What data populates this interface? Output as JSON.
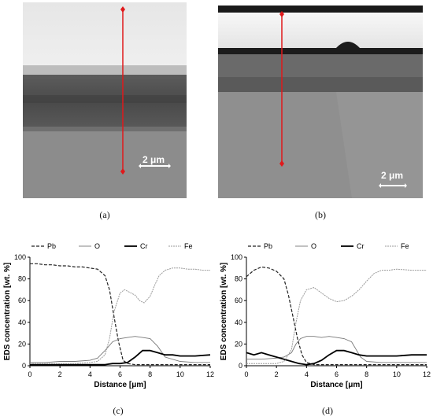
{
  "panels": {
    "a": {
      "caption": "(a)",
      "scale_bar": "2 μm"
    },
    "b": {
      "caption": "(b)",
      "scale_bar": "2 μm"
    },
    "c": {
      "caption": "(c)"
    },
    "d": {
      "caption": "(d)"
    }
  },
  "colors": {
    "line_scan": "#e0191b",
    "pb": "#222222",
    "o": "#777777",
    "cr": "#000000",
    "fe": "#9a9a9a"
  },
  "chart_data": [
    {
      "type": "line",
      "panel": "c",
      "xlabel": "Distance [μm]",
      "ylabel": "EDS concentration [wt. %]",
      "xlim": [
        0,
        12
      ],
      "ylim": [
        0,
        100
      ],
      "xticks": [
        0,
        2,
        4,
        6,
        8,
        10,
        12
      ],
      "yticks": [
        0,
        20,
        40,
        60,
        80,
        100
      ],
      "legend_position": "top",
      "series": [
        {
          "name": "Pb",
          "style": "dashed",
          "x": [
            0,
            0.5,
            1,
            1.5,
            2,
            2.5,
            3,
            3.5,
            4,
            4.5,
            5,
            5.3,
            5.6,
            5.9,
            6.2,
            6.5,
            7,
            8,
            9,
            10,
            11,
            12
          ],
          "y": [
            94,
            94,
            93,
            93,
            92,
            92,
            91,
            91,
            90,
            89,
            83,
            70,
            45,
            22,
            5,
            2,
            1,
            1,
            1,
            1,
            1,
            1
          ]
        },
        {
          "name": "O",
          "style": "solid",
          "x": [
            0,
            1,
            2,
            3,
            4,
            4.5,
            5,
            5.5,
            6,
            6.5,
            7,
            7.5,
            8,
            8.5,
            9,
            10,
            11,
            12
          ],
          "y": [
            3,
            3,
            4,
            4,
            5,
            7,
            14,
            22,
            25,
            26,
            27,
            26,
            25,
            18,
            8,
            4,
            3,
            3
          ]
        },
        {
          "name": "Cr",
          "style": "solid-bold",
          "x": [
            0,
            1,
            2,
            3,
            4,
            5,
            5.5,
            6,
            6.5,
            7,
            7.5,
            8,
            8.5,
            9,
            9.5,
            10,
            11,
            12
          ],
          "y": [
            1,
            1,
            1,
            1,
            1,
            1,
            2,
            2,
            3,
            8,
            14,
            14,
            12,
            10,
            10,
            9,
            9,
            10
          ]
        },
        {
          "name": "Fe",
          "style": "dotted",
          "x": [
            0,
            1,
            2,
            3,
            4,
            4.5,
            5,
            5.3,
            5.6,
            6,
            6.3,
            6.6,
            7,
            7.3,
            7.6,
            8,
            8.3,
            8.6,
            9,
            9.5,
            10,
            10.5,
            11,
            11.5,
            12
          ],
          "y": [
            2,
            2,
            2,
            2,
            3,
            4,
            10,
            25,
            50,
            67,
            70,
            68,
            65,
            60,
            58,
            64,
            74,
            83,
            88,
            90,
            90,
            89,
            89,
            88,
            88
          ]
        }
      ]
    },
    {
      "type": "line",
      "panel": "d",
      "xlabel": "Distance [μm]",
      "ylabel": "EDS concentration [wt. %]",
      "xlim": [
        0,
        12
      ],
      "ylim": [
        0,
        100
      ],
      "xticks": [
        0,
        2,
        4,
        6,
        8,
        10,
        12
      ],
      "yticks": [
        0,
        20,
        40,
        60,
        80,
        100
      ],
      "legend_position": "top",
      "series": [
        {
          "name": "Pb",
          "style": "dashed",
          "x": [
            0,
            0.5,
            1,
            1.5,
            2,
            2.5,
            2.8,
            3.1,
            3.4,
            3.7,
            4,
            4.5,
            5,
            6,
            7,
            8,
            9,
            10,
            11,
            12
          ],
          "y": [
            82,
            88,
            91,
            90,
            87,
            80,
            65,
            45,
            25,
            10,
            3,
            1,
            1,
            1,
            1,
            1,
            1,
            1,
            1,
            1
          ]
        },
        {
          "name": "O",
          "style": "solid",
          "x": [
            0,
            1,
            2,
            2.5,
            3,
            3.3,
            3.6,
            4,
            4.5,
            5,
            5.5,
            6,
            6.5,
            7,
            7.3,
            7.6,
            8,
            9,
            10,
            11,
            12
          ],
          "y": [
            6,
            6,
            7,
            8,
            12,
            20,
            25,
            27,
            27,
            26,
            27,
            26,
            25,
            22,
            15,
            8,
            4,
            3,
            3,
            3,
            3
          ]
        },
        {
          "name": "Cr",
          "style": "solid-bold",
          "x": [
            0,
            0.5,
            1,
            1.5,
            2,
            2.5,
            3,
            3.5,
            4,
            4.5,
            5,
            5.5,
            6,
            6.5,
            7,
            7.5,
            8,
            9,
            10,
            11,
            12
          ],
          "y": [
            12,
            10,
            12,
            10,
            8,
            6,
            4,
            2,
            1,
            2,
            5,
            10,
            14,
            14,
            12,
            10,
            9,
            9,
            9,
            10,
            10
          ]
        },
        {
          "name": "Fe",
          "style": "dotted",
          "x": [
            0,
            1,
            2,
            2.5,
            3,
            3.3,
            3.6,
            4,
            4.5,
            5,
            5.5,
            6,
            6.5,
            7,
            7.5,
            8,
            8.5,
            9,
            9.5,
            10,
            11,
            12
          ],
          "y": [
            2,
            2,
            2,
            4,
            15,
            40,
            60,
            70,
            72,
            67,
            62,
            59,
            60,
            64,
            70,
            78,
            85,
            88,
            88,
            89,
            88,
            88
          ]
        }
      ]
    }
  ]
}
